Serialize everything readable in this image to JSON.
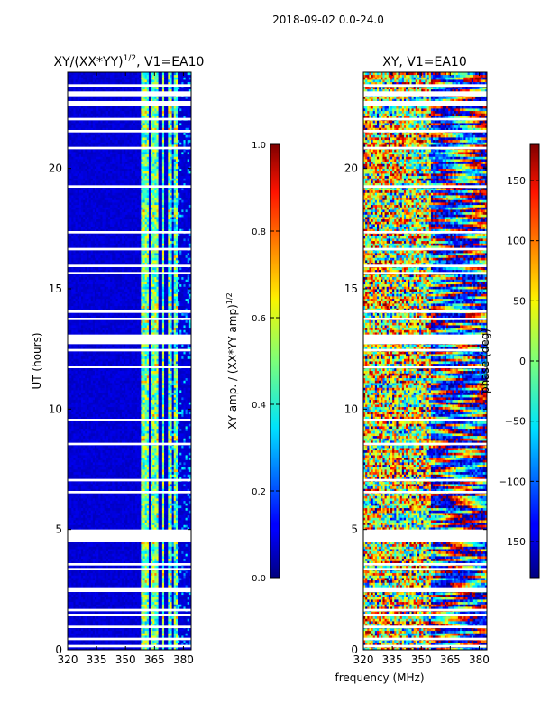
{
  "figure": {
    "suptitle": "2018-09-02 0.0-24.0",
    "shared_xlabel": "frequency (MHz)"
  },
  "chart_data": [
    {
      "type": "heatmap",
      "title_base": "XY/(XX*YY)",
      "title_exponent": "1/2",
      "title_suffix": ", V1=EA10",
      "ylabel": "UT (hours)",
      "xlabel": "frequency (MHz)",
      "xlim": [
        320,
        384
      ],
      "ylim": [
        0,
        24
      ],
      "xticks": [
        "320",
        "335",
        "350",
        "365",
        "380"
      ],
      "xtick_values": [
        320,
        335,
        350,
        365,
        380
      ],
      "yticks": [
        "0",
        "5",
        "10",
        "15",
        "20"
      ],
      "ytick_values": [
        0,
        5,
        10,
        15,
        20
      ],
      "colorbar": {
        "label_base": "XY amp. / (XX*YY amp)",
        "label_exponent": "1/2",
        "range": [
          0.0,
          1.0
        ],
        "ticks": [
          "0.0",
          "0.2",
          "0.4",
          "0.6",
          "0.8",
          "1.0"
        ],
        "tick_values": [
          0.0,
          0.2,
          0.4,
          0.6,
          0.8,
          1.0
        ]
      },
      "gaps_hours": [
        [
          0.1,
          0.2
        ],
        [
          0.4,
          0.5
        ],
        [
          0.9,
          1.0
        ],
        [
          1.4,
          1.5
        ],
        [
          1.6,
          1.7
        ],
        [
          2.4,
          2.6
        ],
        [
          3.3,
          3.4
        ],
        [
          3.5,
          3.6
        ],
        [
          4.5,
          5.0
        ],
        [
          6.5,
          6.6
        ],
        [
          7.0,
          7.1
        ],
        [
          8.5,
          8.6
        ],
        [
          9.5,
          9.6
        ],
        [
          11.7,
          11.8
        ],
        [
          12.4,
          12.5
        ],
        [
          12.7,
          13.1
        ],
        [
          13.7,
          13.8
        ],
        [
          14.0,
          14.1
        ],
        [
          15.6,
          15.7
        ],
        [
          15.9,
          16.0
        ],
        [
          16.6,
          16.7
        ],
        [
          17.3,
          17.4
        ],
        [
          19.2,
          19.3
        ],
        [
          20.8,
          20.9
        ],
        [
          21.5,
          21.6
        ],
        [
          22.0,
          22.1
        ],
        [
          22.6,
          22.8
        ],
        [
          23.0,
          23.2
        ],
        [
          23.4,
          23.5
        ]
      ],
      "bright_bands_mhz": [
        [
          358.5,
          362.0
        ],
        [
          363.5,
          366.5
        ],
        [
          369.0,
          370.0
        ],
        [
          372.5,
          373.5
        ],
        [
          375.5,
          376.5
        ]
      ]
    },
    {
      "type": "heatmap",
      "title": "XY, V1=EA10",
      "ylabel": "",
      "xlabel": "frequency (MHz)",
      "xlim": [
        320,
        384
      ],
      "ylim": [
        0,
        24
      ],
      "xticks": [
        "320",
        "335",
        "350",
        "365",
        "380"
      ],
      "xtick_values": [
        320,
        335,
        350,
        365,
        380
      ],
      "yticks": [
        "0",
        "5",
        "10",
        "15",
        "20"
      ],
      "ytick_values": [
        0,
        5,
        10,
        15,
        20
      ],
      "colorbar": {
        "label": "phase (deg)",
        "range": [
          -180,
          180
        ],
        "ticks": [
          "150",
          "100",
          "50",
          "0",
          "−50",
          "−100",
          "−150"
        ],
        "tick_values": [
          150,
          100,
          50,
          0,
          -50,
          -100,
          -150
        ]
      },
      "gaps_hours": [
        [
          0.1,
          0.2
        ],
        [
          0.4,
          0.5
        ],
        [
          0.9,
          1.0
        ],
        [
          1.4,
          1.5
        ],
        [
          1.6,
          1.7
        ],
        [
          2.4,
          2.6
        ],
        [
          3.3,
          3.4
        ],
        [
          3.5,
          3.6
        ],
        [
          4.5,
          5.0
        ],
        [
          6.5,
          6.6
        ],
        [
          7.0,
          7.1
        ],
        [
          8.5,
          8.6
        ],
        [
          9.5,
          9.6
        ],
        [
          11.7,
          11.8
        ],
        [
          12.4,
          12.5
        ],
        [
          12.7,
          13.1
        ],
        [
          13.7,
          13.8
        ],
        [
          14.0,
          14.1
        ],
        [
          15.6,
          15.7
        ],
        [
          15.9,
          16.0
        ],
        [
          16.6,
          16.7
        ],
        [
          17.3,
          17.4
        ],
        [
          19.2,
          19.3
        ],
        [
          20.8,
          20.9
        ],
        [
          21.5,
          21.6
        ],
        [
          22.0,
          22.1
        ],
        [
          22.6,
          22.8
        ],
        [
          23.0,
          23.2
        ],
        [
          23.4,
          23.5
        ]
      ]
    }
  ]
}
